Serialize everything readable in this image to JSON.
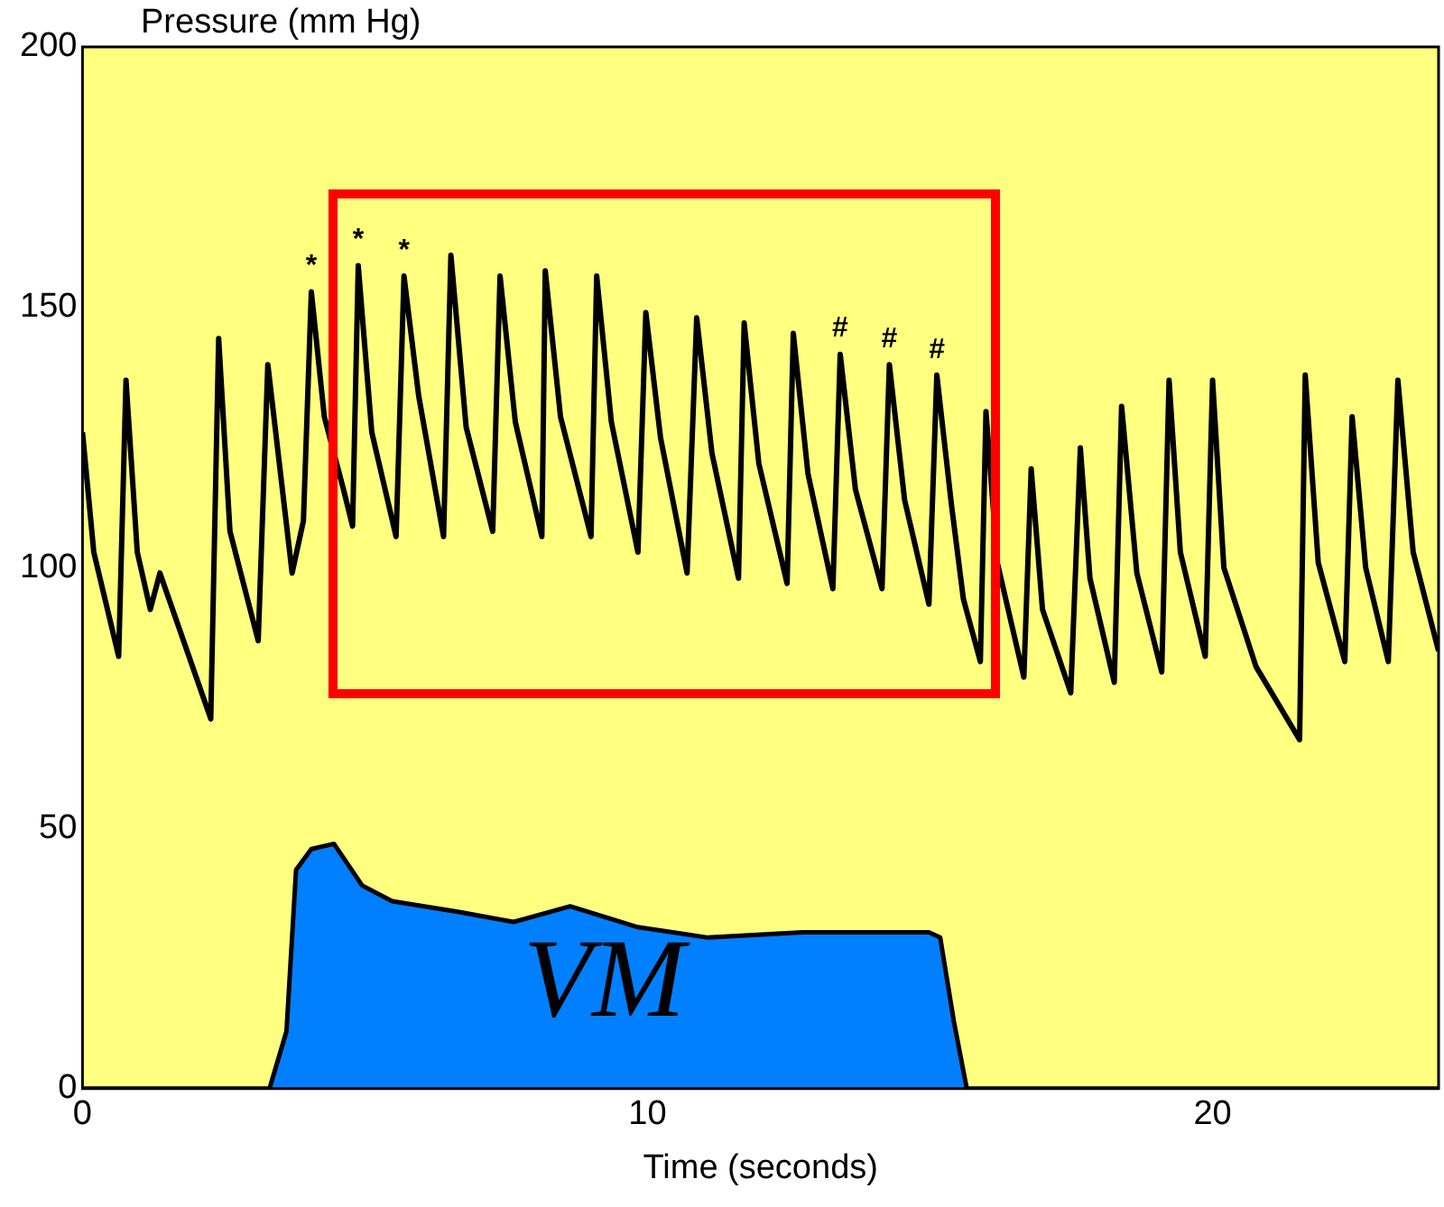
{
  "chart_data": {
    "type": "line",
    "xlabel": "Time (seconds)",
    "ylabel": "Pressure (mm Hg)",
    "xlim": [
      0,
      24
    ],
    "ylim": [
      0,
      200
    ],
    "xticks": [
      0,
      10,
      20
    ],
    "yticks": [
      0,
      50,
      100,
      150,
      200
    ],
    "legend": false,
    "marker": "none",
    "line_style": "solid",
    "series": [
      {
        "color": "#000000",
        "x": [
          0,
          0.2,
          0.64,
          0.77,
          0.97,
          1.2,
          1.37,
          2.27,
          2.41,
          2.61,
          3.11,
          3.28,
          3.71,
          3.91,
          4.05,
          4.28,
          4.62,
          4.78,
          4.88,
          5.12,
          5.55,
          5.69,
          5.95,
          6.39,
          6.52,
          6.79,
          7.26,
          7.39,
          7.66,
          8.13,
          8.19,
          8.46,
          9.0,
          9.1,
          9.36,
          9.83,
          9.97,
          10.23,
          10.7,
          10.87,
          11.14,
          11.61,
          11.71,
          11.97,
          12.47,
          12.58,
          12.84,
          13.28,
          13.41,
          13.68,
          14.15,
          14.28,
          14.55,
          14.98,
          15.12,
          15.38,
          15.59,
          15.89,
          15.99,
          16.19,
          16.66,
          16.79,
          16.99,
          17.49,
          17.66,
          17.83,
          18.26,
          18.39,
          18.66,
          19.1,
          19.23,
          19.43,
          19.87,
          20.0,
          20.2,
          20.77,
          21.54,
          21.64,
          21.87,
          22.34,
          22.47,
          22.71,
          23.11,
          23.28,
          23.55,
          24
        ],
        "values": [
          126,
          103,
          83,
          136,
          103,
          92,
          99,
          71,
          144,
          107,
          86,
          139,
          99,
          109,
          153,
          129,
          115,
          108,
          158,
          126,
          106,
          156,
          133,
          106,
          160,
          127,
          107,
          156,
          128,
          106,
          157,
          129,
          106,
          156,
          128,
          103,
          149,
          125,
          99,
          148,
          122,
          98,
          147,
          120,
          97,
          145,
          118,
          96,
          141,
          115,
          96,
          139,
          113,
          93,
          137,
          112,
          94,
          82,
          130,
          101,
          79,
          119,
          92,
          76,
          123,
          98,
          78,
          131,
          99,
          80,
          136,
          103,
          83,
          136,
          100,
          81,
          67,
          137,
          101,
          82,
          129,
          100,
          82,
          136,
          103,
          84
        ]
      },
      {
        "type": "area",
        "color": "#0080ff",
        "x": [
          0,
          3.31,
          3.61,
          3.78,
          4.05,
          4.45,
          4.95,
          5.48,
          6.62,
          7.63,
          8.63,
          9.83,
          11.07,
          12.74,
          14.98,
          15.18,
          15.42,
          15.65,
          24
        ],
        "values": [
          0,
          0,
          11,
          42,
          46,
          47,
          39,
          36,
          34,
          32,
          35,
          31,
          29,
          30,
          30,
          29,
          13,
          0,
          0
        ]
      }
    ],
    "annotations": [
      {
        "text": "*",
        "x": 4.05,
        "y": 153
      },
      {
        "text": "*",
        "x": 4.88,
        "y": 158
      },
      {
        "text": "*",
        "x": 5.69,
        "y": 156
      },
      {
        "text": "#",
        "x": 13.41,
        "y": 141
      },
      {
        "text": "#",
        "x": 14.28,
        "y": 139
      },
      {
        "text": "#",
        "x": 15.12,
        "y": 137
      },
      "VM"
    ]
  }
}
